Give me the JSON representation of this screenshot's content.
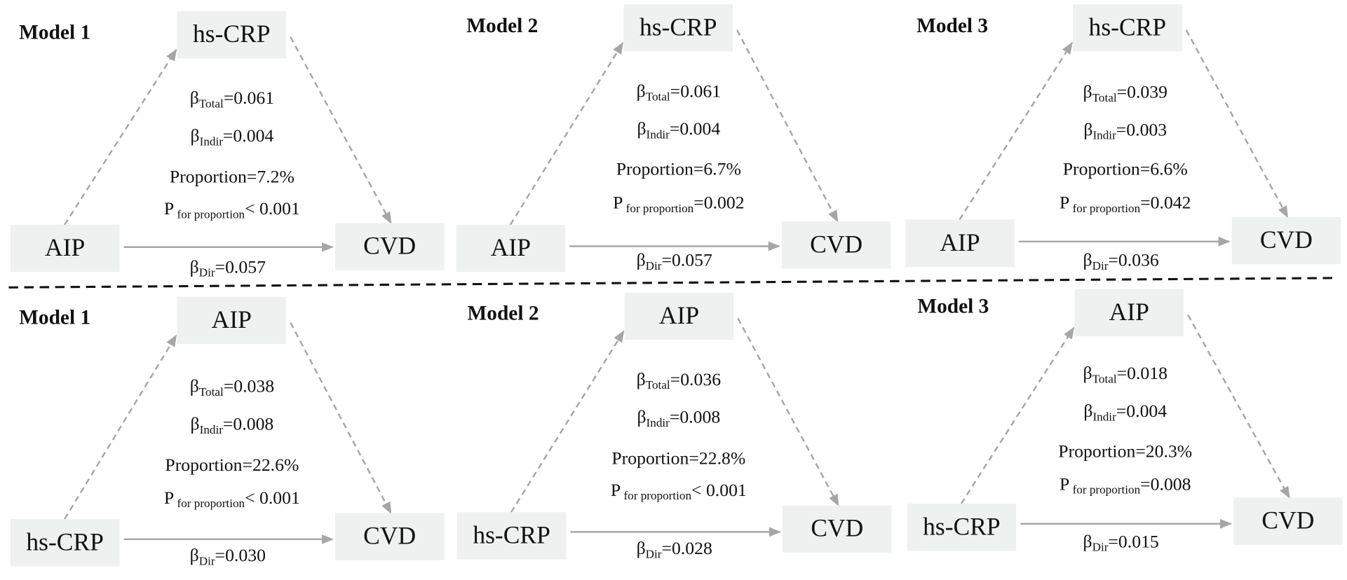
{
  "panels": [
    {
      "model": "Model 1",
      "mediator": "hs-CRP",
      "exposure": "AIP",
      "outcome": "CVD",
      "total": {
        "symbol": "β",
        "sub": "Total",
        "rest": "=0.061"
      },
      "indir": {
        "symbol": "β",
        "sub": "Indir",
        "rest": "=0.004"
      },
      "proportion": "Proportion=7.2%",
      "p": {
        "symbol": "P",
        "sub": " for proportion",
        "rest": "< 0.001"
      },
      "dir": {
        "symbol": "β",
        "sub": "Dir",
        "rest": "=0.057"
      }
    },
    {
      "model": "Model 2",
      "mediator": "hs-CRP",
      "exposure": "AIP",
      "outcome": "CVD",
      "total": {
        "symbol": "β",
        "sub": "Total",
        "rest": "=0.061"
      },
      "indir": {
        "symbol": "β",
        "sub": "Indir",
        "rest": "=0.004"
      },
      "proportion": "Proportion=6.7%",
      "p": {
        "symbol": "P",
        "sub": " for proportion",
        "rest": "=0.002"
      },
      "dir": {
        "symbol": "β",
        "sub": "Dir",
        "rest": "=0.057"
      }
    },
    {
      "model": "Model 3",
      "mediator": "hs-CRP",
      "exposure": "AIP",
      "outcome": "CVD",
      "total": {
        "symbol": "β",
        "sub": "Total",
        "rest": "=0.039"
      },
      "indir": {
        "symbol": "β",
        "sub": "Indir",
        "rest": "=0.003"
      },
      "proportion": "Proportion=6.6%",
      "p": {
        "symbol": "P",
        "sub": " for proportion",
        "rest": "=0.042"
      },
      "dir": {
        "symbol": "β",
        "sub": "Dir",
        "rest": "=0.036"
      }
    },
    {
      "model": "Model 1",
      "mediator": "AIP",
      "exposure": "hs-CRP",
      "outcome": "CVD",
      "total": {
        "symbol": "β",
        "sub": "Total",
        "rest": "=0.038"
      },
      "indir": {
        "symbol": "β",
        "sub": "Indir",
        "rest": "=0.008"
      },
      "proportion": "Proportion=22.6%",
      "p": {
        "symbol": "P",
        "sub": " for proportion",
        "rest": "< 0.001"
      },
      "dir": {
        "symbol": "β",
        "sub": "Dir",
        "rest": "=0.030"
      }
    },
    {
      "model": "Model 2",
      "mediator": "AIP",
      "exposure": "hs-CRP",
      "outcome": "CVD",
      "total": {
        "symbol": "β",
        "sub": "Total",
        "rest": "=0.036"
      },
      "indir": {
        "symbol": "β",
        "sub": "Indir",
        "rest": "=0.008"
      },
      "proportion": "Proportion=22.8%",
      "p": {
        "symbol": "P",
        "sub": " for proportion",
        "rest": "< 0.001"
      },
      "dir": {
        "symbol": "β",
        "sub": "Dir",
        "rest": "=0.028"
      }
    },
    {
      "model": "Model 3",
      "mediator": "AIP",
      "exposure": "hs-CRP",
      "outcome": "CVD",
      "total": {
        "symbol": "β",
        "sub": "Total",
        "rest": "=0.018"
      },
      "indir": {
        "symbol": "β",
        "sub": "Indir",
        "rest": "=0.004"
      },
      "proportion": "Proportion=20.3%",
      "p": {
        "symbol": "P",
        "sub": " for proportion",
        "rest": "=0.008"
      },
      "dir": {
        "symbol": "β",
        "sub": "Dir",
        "rest": "=0.015"
      }
    }
  ]
}
